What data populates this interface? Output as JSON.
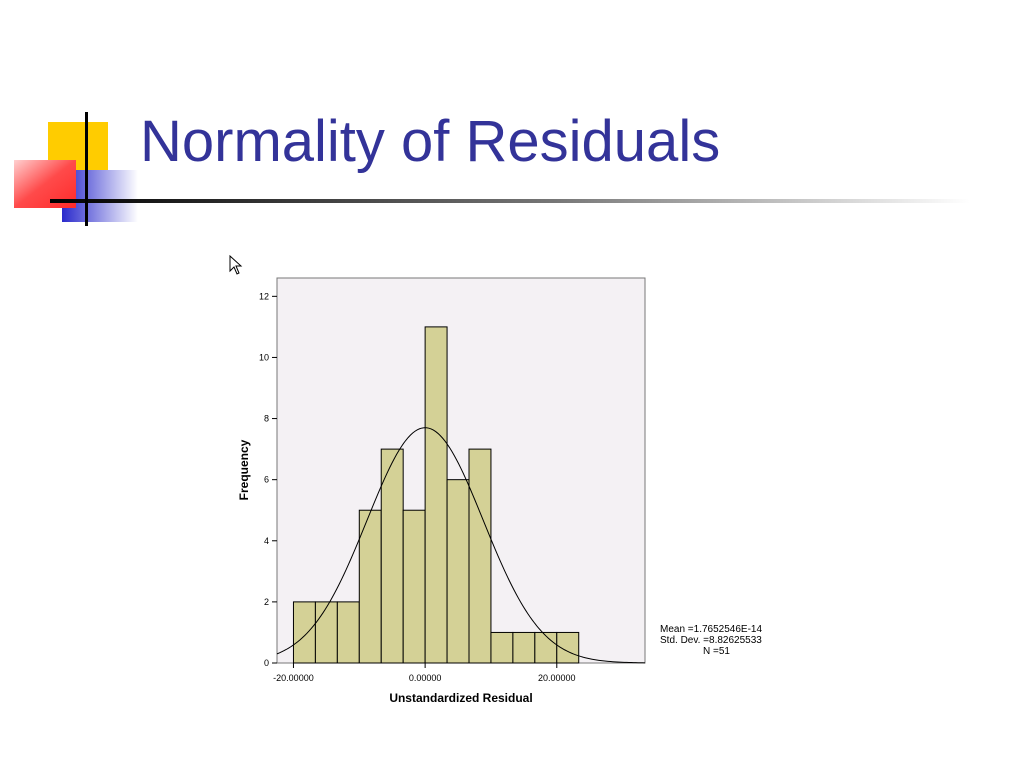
{
  "slide": {
    "title": "Normality of Residuals"
  },
  "colors": {
    "title": "#333399",
    "deco_yellow": "#FFCC00",
    "deco_red": "#FF3333",
    "deco_blue": "#3333CC",
    "plot_bg": "#F4F1F4",
    "bar_fill": "#D4D196",
    "curve": "#000000"
  },
  "chart_data": {
    "type": "bar",
    "xlabel": "Unstandardized Residual",
    "ylabel": "Frequency",
    "bins": {
      "start": -20.0,
      "width": 3.3333,
      "counts": [
        2,
        2,
        2,
        5,
        7,
        5,
        11,
        6,
        7,
        1,
        1,
        1,
        1
      ]
    },
    "xlim": [
      -22.5,
      33.4
    ],
    "ylim": [
      0,
      12.6
    ],
    "x_ticks": [
      -20,
      0,
      20
    ],
    "x_tick_labels": [
      "-20.00000",
      "0.00000",
      "20.00000"
    ],
    "y_ticks": [
      0,
      2,
      4,
      6,
      8,
      10,
      12
    ],
    "y_tick_labels": [
      "0",
      "2",
      "4",
      "6",
      "8",
      "10",
      "12"
    ],
    "normal_curve": {
      "mean": 0.0,
      "std_dev": 8.82625533,
      "peak": 7.7
    },
    "stats": {
      "mean": "Mean =1.7652546E-14",
      "std_dev": "Std. Dev. =8.82625533",
      "n": "N =51"
    },
    "grid": false
  }
}
